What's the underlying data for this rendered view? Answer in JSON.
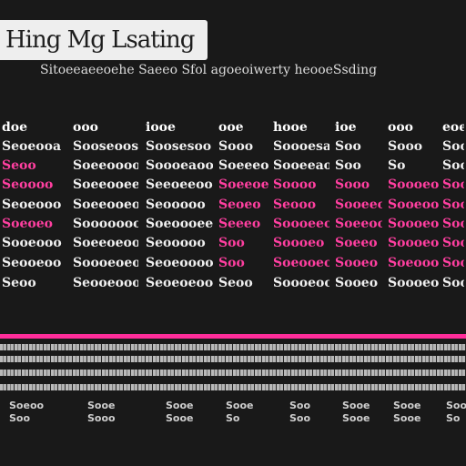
{
  "title": "Hing Mg Lsating",
  "subtitle": "Sitoeeaeeoehe Saeeo Sfol agoeoiwerty heooeSsding",
  "table": {
    "headers": [
      "doe",
      "ooo",
      "iooe",
      "ooe",
      "hooe",
      "ioe",
      "ooo",
      "eoe"
    ],
    "rows": [
      [
        {
          "t": "Seoeooa",
          "pink": false
        },
        {
          "t": "Sooseoos",
          "pink": false
        },
        {
          "t": "Soosesoo",
          "pink": false
        },
        {
          "t": "Sooo",
          "pink": false
        },
        {
          "t": "Soooesa",
          "pink": false
        },
        {
          "t": "Soo",
          "pink": false
        },
        {
          "t": "Sooo",
          "pink": false
        },
        {
          "t": "Sooo",
          "pink": false
        }
      ],
      [
        {
          "t": "Seoo",
          "pink": true
        },
        {
          "t": "Soeeooooo",
          "pink": false
        },
        {
          "t": "Soooeaooeo",
          "pink": false
        },
        {
          "t": "Soeeeo",
          "pink": false
        },
        {
          "t": "Sooeeao",
          "pink": false
        },
        {
          "t": "Soo",
          "pink": false
        },
        {
          "t": "So",
          "pink": false
        },
        {
          "t": "Sooo",
          "pink": false
        }
      ],
      [
        {
          "t": "Seoooo",
          "pink": true
        },
        {
          "t": "Soeeooeeo",
          "pink": false
        },
        {
          "t": "Seeoeeoo",
          "pink": false
        },
        {
          "t": "Soeeoe",
          "pink": true
        },
        {
          "t": "Soooo",
          "pink": true
        },
        {
          "t": "Sooo",
          "pink": true
        },
        {
          "t": "Soooeo",
          "pink": true
        },
        {
          "t": "Sooo",
          "pink": true
        }
      ],
      [
        {
          "t": "Seoeooo",
          "pink": false
        },
        {
          "t": "Soeeooeooo",
          "pink": false
        },
        {
          "t": "Seooooo",
          "pink": false
        },
        {
          "t": "Seoeo",
          "pink": true
        },
        {
          "t": "Seooo",
          "pink": true
        },
        {
          "t": "Sooeeo",
          "pink": true
        },
        {
          "t": "Sooeoo",
          "pink": true
        },
        {
          "t": "Sooo",
          "pink": true
        }
      ],
      [
        {
          "t": "Soeoeo",
          "pink": true
        },
        {
          "t": "Soooooooo",
          "pink": false
        },
        {
          "t": "Soeoooeeo",
          "pink": false
        },
        {
          "t": "Seeeo",
          "pink": true
        },
        {
          "t": "Soooeeo",
          "pink": true
        },
        {
          "t": "Soeeoo",
          "pink": true
        },
        {
          "t": "Soooeo",
          "pink": true
        },
        {
          "t": "Sooo",
          "pink": true
        }
      ],
      [
        {
          "t": "Sooeooo",
          "pink": false
        },
        {
          "t": "Soeeoeooo",
          "pink": false
        },
        {
          "t": "Seooooo",
          "pink": false
        },
        {
          "t": "Soo",
          "pink": true
        },
        {
          "t": "Soooeo",
          "pink": true
        },
        {
          "t": "Soeeo",
          "pink": true
        },
        {
          "t": "Soooeo",
          "pink": true
        },
        {
          "t": "Sooo",
          "pink": true
        }
      ],
      [
        {
          "t": "Seooeoo",
          "pink": false
        },
        {
          "t": "Soooeoeoo",
          "pink": false
        },
        {
          "t": "Seoeoooo",
          "pink": false
        },
        {
          "t": "Soo",
          "pink": true
        },
        {
          "t": "Soeooeo",
          "pink": true
        },
        {
          "t": "Sooeo",
          "pink": true
        },
        {
          "t": "Soeooo",
          "pink": true
        },
        {
          "t": "Sooo",
          "pink": true
        }
      ],
      [
        {
          "t": "Seoo",
          "pink": false
        },
        {
          "t": "Seooeooo",
          "pink": false
        },
        {
          "t": "Seoeoeoo",
          "pink": false
        },
        {
          "t": "Seoo",
          "pink": false
        },
        {
          "t": "Soooeooo",
          "pink": false
        },
        {
          "t": "Sooeo",
          "pink": false
        },
        {
          "t": "Soooeo",
          "pink": false
        },
        {
          "t": "Sooo",
          "pink": false
        }
      ]
    ]
  },
  "footer": [
    {
      "a": "Soeoo",
      "b": "Sooe",
      "c": "Sooe",
      "d": "Sooe",
      "e": "Soo",
      "f": "Sooe",
      "g": "Sooe",
      "h": "Soo"
    },
    {
      "a": "Soo",
      "b": "Sooo",
      "c": "Sooe",
      "d": "So",
      "e": "Soo",
      "f": "Sooe",
      "g": "Sooe",
      "h": "So"
    }
  ],
  "colors": {
    "background": "#191919",
    "accent_pink": "#ff3fa0",
    "rule_pink": "#ff2d9a",
    "title_box": "#eeeeee"
  }
}
